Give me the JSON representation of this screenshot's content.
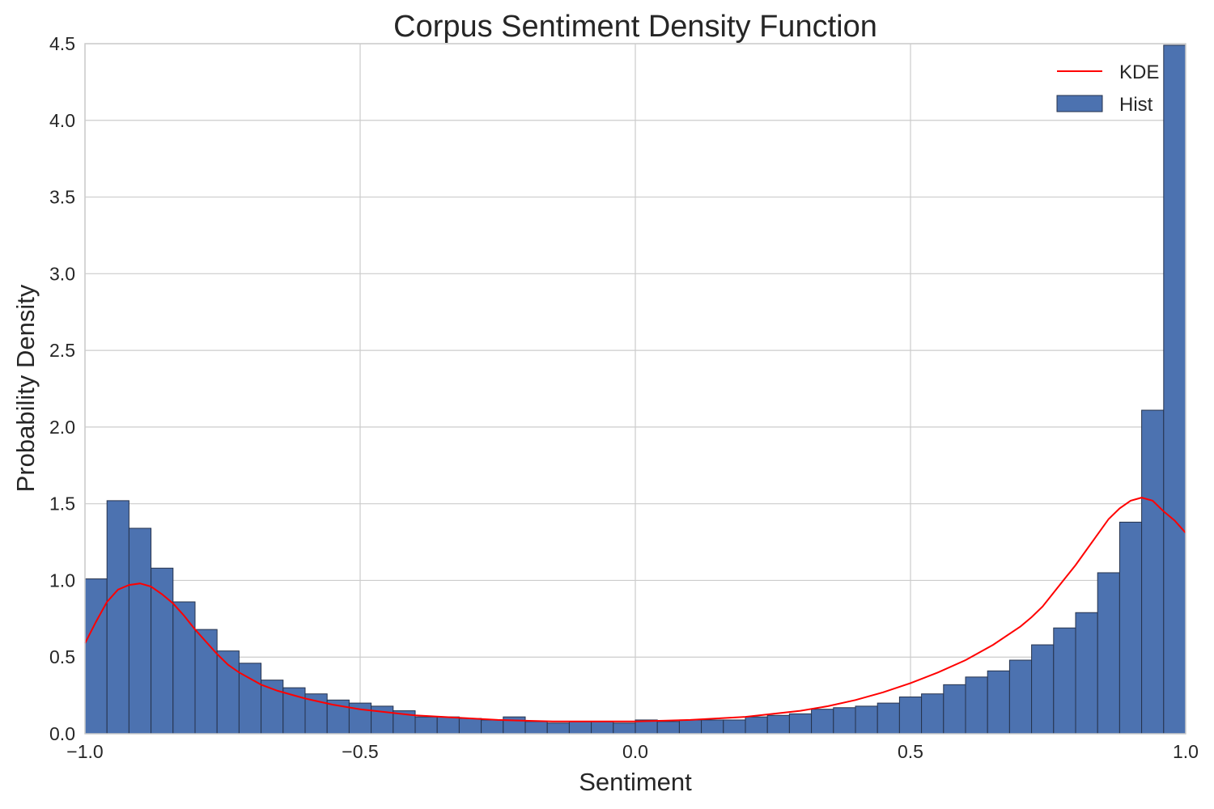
{
  "chart_data": {
    "type": "bar",
    "title": "Corpus Sentiment Density Function",
    "xlabel": "Sentiment",
    "ylabel": "Probability Density",
    "xlim": [
      -1.0,
      1.0
    ],
    "ylim": [
      0.0,
      4.5
    ],
    "x_ticks": [
      -1.0,
      -0.5,
      0.0,
      0.5,
      1.0
    ],
    "x_tick_labels": [
      "−1.0",
      "−0.5",
      "0.0",
      "0.5",
      "1.0"
    ],
    "y_ticks": [
      0.0,
      0.5,
      1.0,
      1.5,
      2.0,
      2.5,
      3.0,
      3.5,
      4.0,
      4.5
    ],
    "y_tick_labels": [
      "0.0",
      "0.5",
      "1.0",
      "1.5",
      "2.0",
      "2.5",
      "3.0",
      "3.5",
      "4.0",
      "4.5"
    ],
    "grid": true,
    "legend_position": "top-right",
    "series": [
      {
        "name": "Hist",
        "type": "histogram",
        "color": "#4c72b0",
        "bin_edges": [
          -1.0,
          -0.96,
          -0.92,
          -0.88,
          -0.84,
          -0.8,
          -0.76,
          -0.72,
          -0.68,
          -0.64,
          -0.6,
          -0.56,
          -0.52,
          -0.48,
          -0.44,
          -0.4,
          -0.36,
          -0.32,
          -0.28,
          -0.24,
          -0.2,
          -0.16,
          -0.12,
          -0.08,
          -0.04,
          0.0,
          0.04,
          0.08,
          0.12,
          0.16,
          0.2,
          0.24,
          0.28,
          0.32,
          0.36,
          0.4,
          0.44,
          0.48,
          0.52,
          0.56,
          0.6,
          0.64,
          0.68,
          0.72,
          0.76,
          0.8,
          0.84,
          0.88,
          0.92,
          0.96,
          1.0
        ],
        "values": [
          1.01,
          1.52,
          1.34,
          1.08,
          0.86,
          0.68,
          0.54,
          0.46,
          0.35,
          0.3,
          0.26,
          0.22,
          0.2,
          0.18,
          0.15,
          0.11,
          0.11,
          0.1,
          0.09,
          0.11,
          0.08,
          0.07,
          0.08,
          0.08,
          0.07,
          0.09,
          0.08,
          0.09,
          0.09,
          0.09,
          0.11,
          0.12,
          0.13,
          0.16,
          0.17,
          0.18,
          0.2,
          0.24,
          0.26,
          0.32,
          0.37,
          0.41,
          0.48,
          0.58,
          0.69,
          0.79,
          1.05,
          1.38,
          2.11,
          4.49
        ]
      },
      {
        "name": "KDE",
        "type": "line",
        "color": "#ff0000",
        "x": [
          -1.0,
          -0.98,
          -0.96,
          -0.94,
          -0.92,
          -0.9,
          -0.88,
          -0.86,
          -0.84,
          -0.82,
          -0.8,
          -0.78,
          -0.76,
          -0.74,
          -0.72,
          -0.7,
          -0.68,
          -0.65,
          -0.62,
          -0.6,
          -0.55,
          -0.5,
          -0.45,
          -0.4,
          -0.35,
          -0.3,
          -0.25,
          -0.2,
          -0.15,
          -0.1,
          -0.05,
          0.0,
          0.05,
          0.1,
          0.15,
          0.2,
          0.25,
          0.3,
          0.35,
          0.4,
          0.45,
          0.5,
          0.55,
          0.6,
          0.65,
          0.7,
          0.72,
          0.74,
          0.76,
          0.78,
          0.8,
          0.82,
          0.84,
          0.86,
          0.88,
          0.9,
          0.92,
          0.94,
          0.96,
          0.98,
          1.0
        ],
        "y": [
          0.59,
          0.73,
          0.86,
          0.94,
          0.97,
          0.98,
          0.96,
          0.91,
          0.85,
          0.77,
          0.68,
          0.6,
          0.52,
          0.45,
          0.4,
          0.36,
          0.32,
          0.28,
          0.25,
          0.23,
          0.19,
          0.16,
          0.14,
          0.12,
          0.11,
          0.1,
          0.09,
          0.085,
          0.08,
          0.08,
          0.08,
          0.08,
          0.085,
          0.09,
          0.1,
          0.11,
          0.13,
          0.15,
          0.18,
          0.22,
          0.27,
          0.33,
          0.4,
          0.48,
          0.58,
          0.7,
          0.76,
          0.83,
          0.92,
          1.01,
          1.1,
          1.2,
          1.3,
          1.4,
          1.47,
          1.52,
          1.54,
          1.52,
          1.45,
          1.39,
          1.31
        ]
      }
    ]
  }
}
